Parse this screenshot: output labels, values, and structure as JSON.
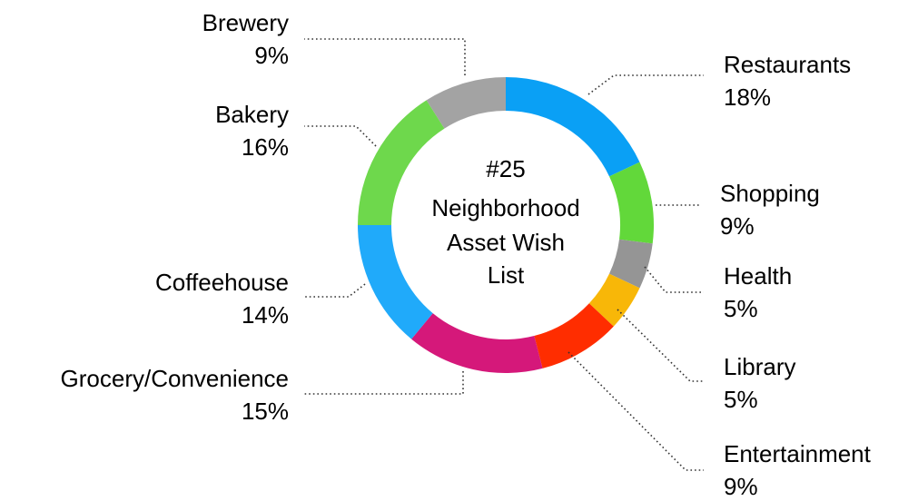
{
  "chart_data": {
    "type": "pie",
    "title": "#25 Neighborhood Asset Wish List",
    "title_lines": [
      "#25",
      "Neighborhood",
      "Asset Wish",
      "List"
    ],
    "donut": true,
    "slices": [
      {
        "label": "Restaurants",
        "percent_text": "18%",
        "value": 18,
        "color": "#0AA0F5"
      },
      {
        "label": "Shopping",
        "percent_text": "9%",
        "value": 9,
        "color": "#62D83A"
      },
      {
        "label": "Health",
        "percent_text": "5%",
        "value": 5,
        "color": "#959595"
      },
      {
        "label": "Library",
        "percent_text": "5%",
        "value": 5,
        "color": "#F8B708"
      },
      {
        "label": "Entertainment",
        "percent_text": "9%",
        "value": 9,
        "color": "#FF2D00"
      },
      {
        "label": "Grocery/Convenience",
        "percent_text": "15%",
        "value": 15,
        "color": "#D5187A"
      },
      {
        "label": "Coffeehouse",
        "percent_text": "14%",
        "value": 14,
        "color": "#20AAFA"
      },
      {
        "label": "Bakery",
        "percent_text": "16%",
        "value": 16,
        "color": "#6ED84C"
      },
      {
        "label": "Brewery",
        "percent_text": "9%",
        "value": 9,
        "color": "#A3A3A3"
      }
    ]
  }
}
